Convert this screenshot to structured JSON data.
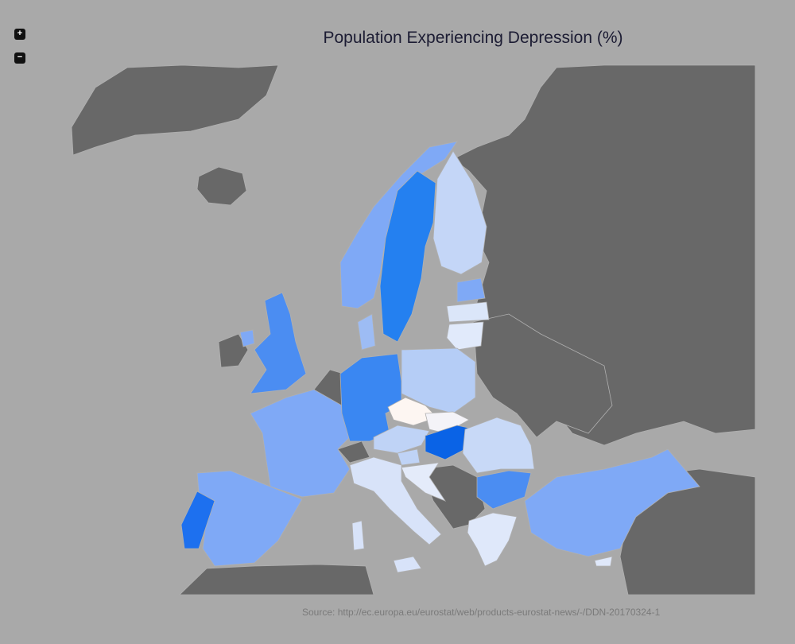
{
  "title": "Population Experiencing Depression (%)",
  "source": "Source: http://ec.europa.eu/eurostat/web/products-eurostat-news/-/DDN-20170324-1",
  "zoom": {
    "in_label": "+",
    "out_label": "−"
  },
  "colors": {
    "background": "#a9a9a9",
    "no_data": "#686868",
    "scale_low": "#fdf6f2",
    "scale_high": "#0a63e6"
  },
  "regions_shaded": {
    "strong_blue": [
      "Sweden",
      "Hungary",
      "Portugal"
    ],
    "medium_blue": [
      "Germany",
      "United Kingdom"
    ],
    "light_blue": [
      "Norway",
      "Ireland",
      "Denmark",
      "France",
      "Spain",
      "Bulgaria",
      "Turkey",
      "Latvia"
    ],
    "pale_blue": [
      "Finland",
      "Estonia",
      "Lithuania",
      "Poland",
      "Romania",
      "Austria",
      "Slovenia",
      "Croatia",
      "Italy",
      "Greece"
    ],
    "near_white": [
      "Czech Republic",
      "Slovakia"
    ]
  }
}
